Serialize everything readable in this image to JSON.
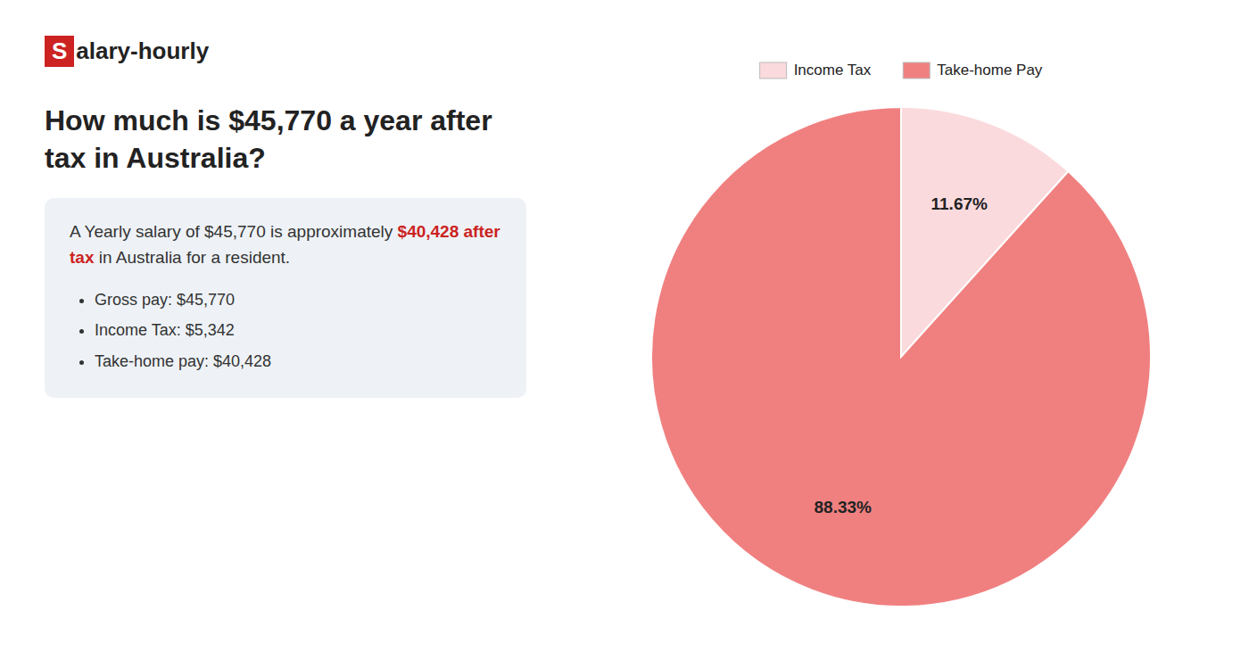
{
  "chart_data": {
    "type": "pie",
    "title": "How much is $45,770 a year after tax in Australia?",
    "annotations": [
      {
        "text": "S",
        "color": "#cc2222"
      },
      {
        "text": "alary-hourly"
      },
      {
        "text": "A Yearly salary of $45,770 is approximately "
      },
      {
        "text": "$40,428 after tax",
        "color": "#cc2222"
      },
      {
        "text": " in Australia for a resident."
      },
      {
        "text": "Gross pay: $45,770"
      },
      {
        "text": "Income Tax: $5,342"
      },
      {
        "text": "Take-home pay: $40,428"
      }
    ],
    "categories": [
      "Income Tax",
      "Take-home Pay"
    ],
    "values": [
      11.67,
      88.33
    ],
    "value_labels": [
      "11.67%",
      "88.33%"
    ],
    "colors": [
      "#fadadd",
      "#f08080"
    ],
    "data_labels": true,
    "legend": "top"
  }
}
